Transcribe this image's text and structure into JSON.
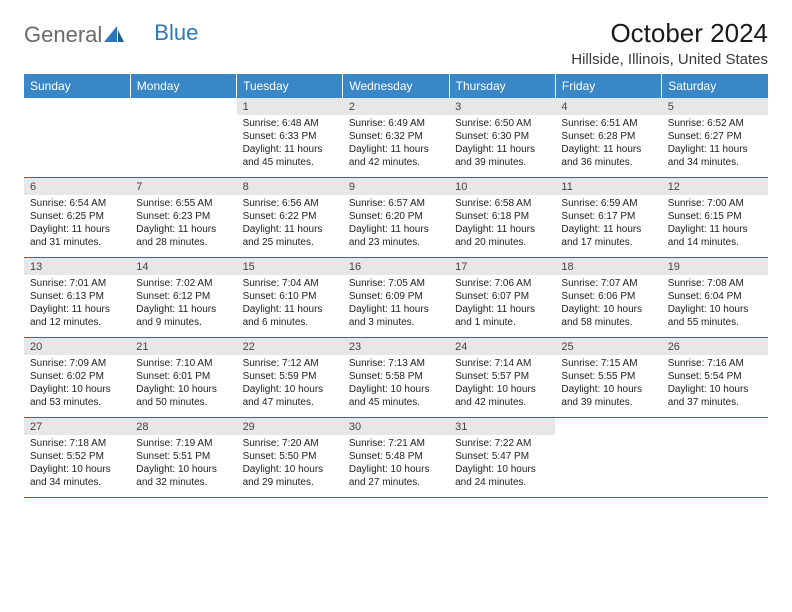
{
  "logo": {
    "text_general": "General",
    "text_blue": "Blue"
  },
  "title": "October 2024",
  "location": "Hillside, Illinois, United States",
  "colors": {
    "header_bg": "#3a87c8",
    "header_text": "#ffffff",
    "daynum_bg": "#e7e7e7",
    "rule": "#2a6fa3",
    "page_bg": "#ffffff",
    "text": "#222222",
    "logo_general": "#6a6a6a",
    "logo_blue": "#2a78bd"
  },
  "typography": {
    "title_fontsize": 26,
    "location_fontsize": 15,
    "dow_fontsize": 12,
    "daynum_fontsize": 11,
    "cell_fontsize": 10
  },
  "days_of_week": [
    "Sunday",
    "Monday",
    "Tuesday",
    "Wednesday",
    "Thursday",
    "Friday",
    "Saturday"
  ],
  "weeks": [
    {
      "nums": [
        "",
        "",
        "1",
        "2",
        "3",
        "4",
        "5"
      ],
      "cells": [
        null,
        null,
        {
          "l1": "Sunrise: 6:48 AM",
          "l2": "Sunset: 6:33 PM",
          "l3": "Daylight: 11 hours",
          "l4": "and 45 minutes."
        },
        {
          "l1": "Sunrise: 6:49 AM",
          "l2": "Sunset: 6:32 PM",
          "l3": "Daylight: 11 hours",
          "l4": "and 42 minutes."
        },
        {
          "l1": "Sunrise: 6:50 AM",
          "l2": "Sunset: 6:30 PM",
          "l3": "Daylight: 11 hours",
          "l4": "and 39 minutes."
        },
        {
          "l1": "Sunrise: 6:51 AM",
          "l2": "Sunset: 6:28 PM",
          "l3": "Daylight: 11 hours",
          "l4": "and 36 minutes."
        },
        {
          "l1": "Sunrise: 6:52 AM",
          "l2": "Sunset: 6:27 PM",
          "l3": "Daylight: 11 hours",
          "l4": "and 34 minutes."
        }
      ]
    },
    {
      "nums": [
        "6",
        "7",
        "8",
        "9",
        "10",
        "11",
        "12"
      ],
      "cells": [
        {
          "l1": "Sunrise: 6:54 AM",
          "l2": "Sunset: 6:25 PM",
          "l3": "Daylight: 11 hours",
          "l4": "and 31 minutes."
        },
        {
          "l1": "Sunrise: 6:55 AM",
          "l2": "Sunset: 6:23 PM",
          "l3": "Daylight: 11 hours",
          "l4": "and 28 minutes."
        },
        {
          "l1": "Sunrise: 6:56 AM",
          "l2": "Sunset: 6:22 PM",
          "l3": "Daylight: 11 hours",
          "l4": "and 25 minutes."
        },
        {
          "l1": "Sunrise: 6:57 AM",
          "l2": "Sunset: 6:20 PM",
          "l3": "Daylight: 11 hours",
          "l4": "and 23 minutes."
        },
        {
          "l1": "Sunrise: 6:58 AM",
          "l2": "Sunset: 6:18 PM",
          "l3": "Daylight: 11 hours",
          "l4": "and 20 minutes."
        },
        {
          "l1": "Sunrise: 6:59 AM",
          "l2": "Sunset: 6:17 PM",
          "l3": "Daylight: 11 hours",
          "l4": "and 17 minutes."
        },
        {
          "l1": "Sunrise: 7:00 AM",
          "l2": "Sunset: 6:15 PM",
          "l3": "Daylight: 11 hours",
          "l4": "and 14 minutes."
        }
      ]
    },
    {
      "nums": [
        "13",
        "14",
        "15",
        "16",
        "17",
        "18",
        "19"
      ],
      "cells": [
        {
          "l1": "Sunrise: 7:01 AM",
          "l2": "Sunset: 6:13 PM",
          "l3": "Daylight: 11 hours",
          "l4": "and 12 minutes."
        },
        {
          "l1": "Sunrise: 7:02 AM",
          "l2": "Sunset: 6:12 PM",
          "l3": "Daylight: 11 hours",
          "l4": "and 9 minutes."
        },
        {
          "l1": "Sunrise: 7:04 AM",
          "l2": "Sunset: 6:10 PM",
          "l3": "Daylight: 11 hours",
          "l4": "and 6 minutes."
        },
        {
          "l1": "Sunrise: 7:05 AM",
          "l2": "Sunset: 6:09 PM",
          "l3": "Daylight: 11 hours",
          "l4": "and 3 minutes."
        },
        {
          "l1": "Sunrise: 7:06 AM",
          "l2": "Sunset: 6:07 PM",
          "l3": "Daylight: 11 hours",
          "l4": "and 1 minute."
        },
        {
          "l1": "Sunrise: 7:07 AM",
          "l2": "Sunset: 6:06 PM",
          "l3": "Daylight: 10 hours",
          "l4": "and 58 minutes."
        },
        {
          "l1": "Sunrise: 7:08 AM",
          "l2": "Sunset: 6:04 PM",
          "l3": "Daylight: 10 hours",
          "l4": "and 55 minutes."
        }
      ]
    },
    {
      "nums": [
        "20",
        "21",
        "22",
        "23",
        "24",
        "25",
        "26"
      ],
      "cells": [
        {
          "l1": "Sunrise: 7:09 AM",
          "l2": "Sunset: 6:02 PM",
          "l3": "Daylight: 10 hours",
          "l4": "and 53 minutes."
        },
        {
          "l1": "Sunrise: 7:10 AM",
          "l2": "Sunset: 6:01 PM",
          "l3": "Daylight: 10 hours",
          "l4": "and 50 minutes."
        },
        {
          "l1": "Sunrise: 7:12 AM",
          "l2": "Sunset: 5:59 PM",
          "l3": "Daylight: 10 hours",
          "l4": "and 47 minutes."
        },
        {
          "l1": "Sunrise: 7:13 AM",
          "l2": "Sunset: 5:58 PM",
          "l3": "Daylight: 10 hours",
          "l4": "and 45 minutes."
        },
        {
          "l1": "Sunrise: 7:14 AM",
          "l2": "Sunset: 5:57 PM",
          "l3": "Daylight: 10 hours",
          "l4": "and 42 minutes."
        },
        {
          "l1": "Sunrise: 7:15 AM",
          "l2": "Sunset: 5:55 PM",
          "l3": "Daylight: 10 hours",
          "l4": "and 39 minutes."
        },
        {
          "l1": "Sunrise: 7:16 AM",
          "l2": "Sunset: 5:54 PM",
          "l3": "Daylight: 10 hours",
          "l4": "and 37 minutes."
        }
      ]
    },
    {
      "nums": [
        "27",
        "28",
        "29",
        "30",
        "31",
        "",
        ""
      ],
      "cells": [
        {
          "l1": "Sunrise: 7:18 AM",
          "l2": "Sunset: 5:52 PM",
          "l3": "Daylight: 10 hours",
          "l4": "and 34 minutes."
        },
        {
          "l1": "Sunrise: 7:19 AM",
          "l2": "Sunset: 5:51 PM",
          "l3": "Daylight: 10 hours",
          "l4": "and 32 minutes."
        },
        {
          "l1": "Sunrise: 7:20 AM",
          "l2": "Sunset: 5:50 PM",
          "l3": "Daylight: 10 hours",
          "l4": "and 29 minutes."
        },
        {
          "l1": "Sunrise: 7:21 AM",
          "l2": "Sunset: 5:48 PM",
          "l3": "Daylight: 10 hours",
          "l4": "and 27 minutes."
        },
        {
          "l1": "Sunrise: 7:22 AM",
          "l2": "Sunset: 5:47 PM",
          "l3": "Daylight: 10 hours",
          "l4": "and 24 minutes."
        },
        null,
        null
      ]
    }
  ]
}
